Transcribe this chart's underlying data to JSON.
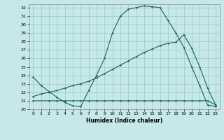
{
  "xlabel": "Humidex (Indice chaleur)",
  "bg_color": "#c6e8e8",
  "grid_color": "#9ecece",
  "line_color": "#1a6060",
  "xlim": [
    -0.5,
    23.5
  ],
  "ylim": [
    20,
    32.4
  ],
  "yticks": [
    20,
    21,
    22,
    23,
    24,
    25,
    26,
    27,
    28,
    29,
    30,
    31,
    32
  ],
  "xticks": [
    0,
    1,
    2,
    3,
    4,
    5,
    6,
    7,
    8,
    9,
    10,
    11,
    12,
    13,
    14,
    15,
    16,
    17,
    18,
    19,
    20,
    21,
    22,
    23
  ],
  "line1_x": [
    0,
    1,
    2,
    3,
    4,
    5,
    6,
    7,
    8,
    9,
    10,
    11,
    12,
    13,
    14,
    15,
    16,
    17,
    18,
    19,
    20,
    21,
    22,
    23
  ],
  "line1_y": [
    23.8,
    22.8,
    22.1,
    21.4,
    20.8,
    20.4,
    20.3,
    22.2,
    24.0,
    26.0,
    29.0,
    31.0,
    31.8,
    32.0,
    32.2,
    32.1,
    32.0,
    30.5,
    29.0,
    27.3,
    25.0,
    22.8,
    20.5,
    20.3
  ],
  "line2_x": [
    0,
    2,
    3,
    4,
    5,
    6,
    7,
    8,
    9,
    10,
    11,
    12,
    13,
    14,
    15,
    16,
    17,
    18,
    19,
    20,
    21,
    22,
    23
  ],
  "line2_y": [
    21.0,
    21.0,
    21.0,
    21.0,
    21.0,
    21.0,
    21.0,
    21.0,
    21.0,
    21.0,
    21.0,
    21.0,
    21.0,
    21.0,
    21.0,
    21.0,
    21.0,
    21.0,
    21.0,
    21.0,
    21.0,
    21.0,
    20.5
  ],
  "line3_x": [
    0,
    1,
    2,
    3,
    4,
    5,
    6,
    7,
    8,
    9,
    10,
    11,
    12,
    13,
    14,
    15,
    16,
    17,
    18,
    19,
    20,
    21,
    22,
    23
  ],
  "line3_y": [
    21.5,
    21.8,
    22.0,
    22.2,
    22.5,
    22.8,
    23.0,
    23.3,
    23.7,
    24.2,
    24.7,
    25.2,
    25.7,
    26.2,
    26.7,
    27.1,
    27.5,
    27.8,
    27.9,
    28.8,
    27.2,
    25.0,
    22.5,
    20.5
  ]
}
